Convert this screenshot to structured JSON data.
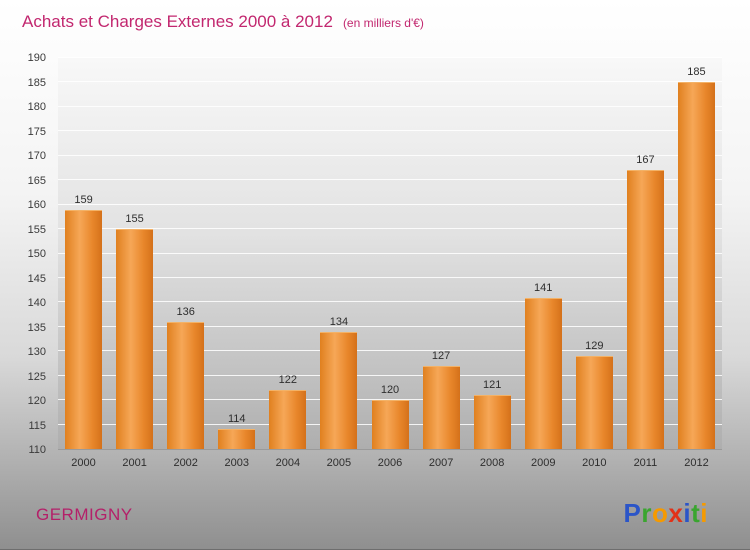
{
  "header": {
    "title": "Achats et Charges Externes 2000 à 2012",
    "subtitle": "(en milliers d'€)"
  },
  "footer": {
    "location": "GERMIGNY",
    "logo_text": "Proxiti",
    "logo_letters": [
      {
        "char": "P",
        "color": "#2b55c8"
      },
      {
        "char": "r",
        "color": "#3aa52f"
      },
      {
        "char": "o",
        "color": "#f59a00"
      },
      {
        "char": "x",
        "color": "#e23118"
      },
      {
        "char": "i",
        "color": "#2b55c8"
      },
      {
        "char": "t",
        "color": "#3aa52f"
      },
      {
        "char": "i",
        "color": "#f59a00"
      }
    ]
  },
  "colors": {
    "title_pink": "#c2276f",
    "bar_orange": "#e8862a",
    "axis_text": "#2e2e2e"
  },
  "chart_data": {
    "type": "bar",
    "title": "Achats et Charges Externes 2000 à 2012",
    "subtitle": "(en milliers d'€)",
    "categories": [
      "2000",
      "2001",
      "2002",
      "2003",
      "2004",
      "2005",
      "2006",
      "2007",
      "2008",
      "2009",
      "2010",
      "2011",
      "2012"
    ],
    "values": [
      159,
      155,
      136,
      114,
      122,
      134,
      120,
      127,
      121,
      141,
      129,
      167,
      185
    ],
    "xlabel": "",
    "ylabel": "",
    "ylim": [
      110,
      190
    ],
    "ytick_step": 5,
    "grid": true,
    "legend": "none",
    "bar_color": "#e8862a"
  }
}
